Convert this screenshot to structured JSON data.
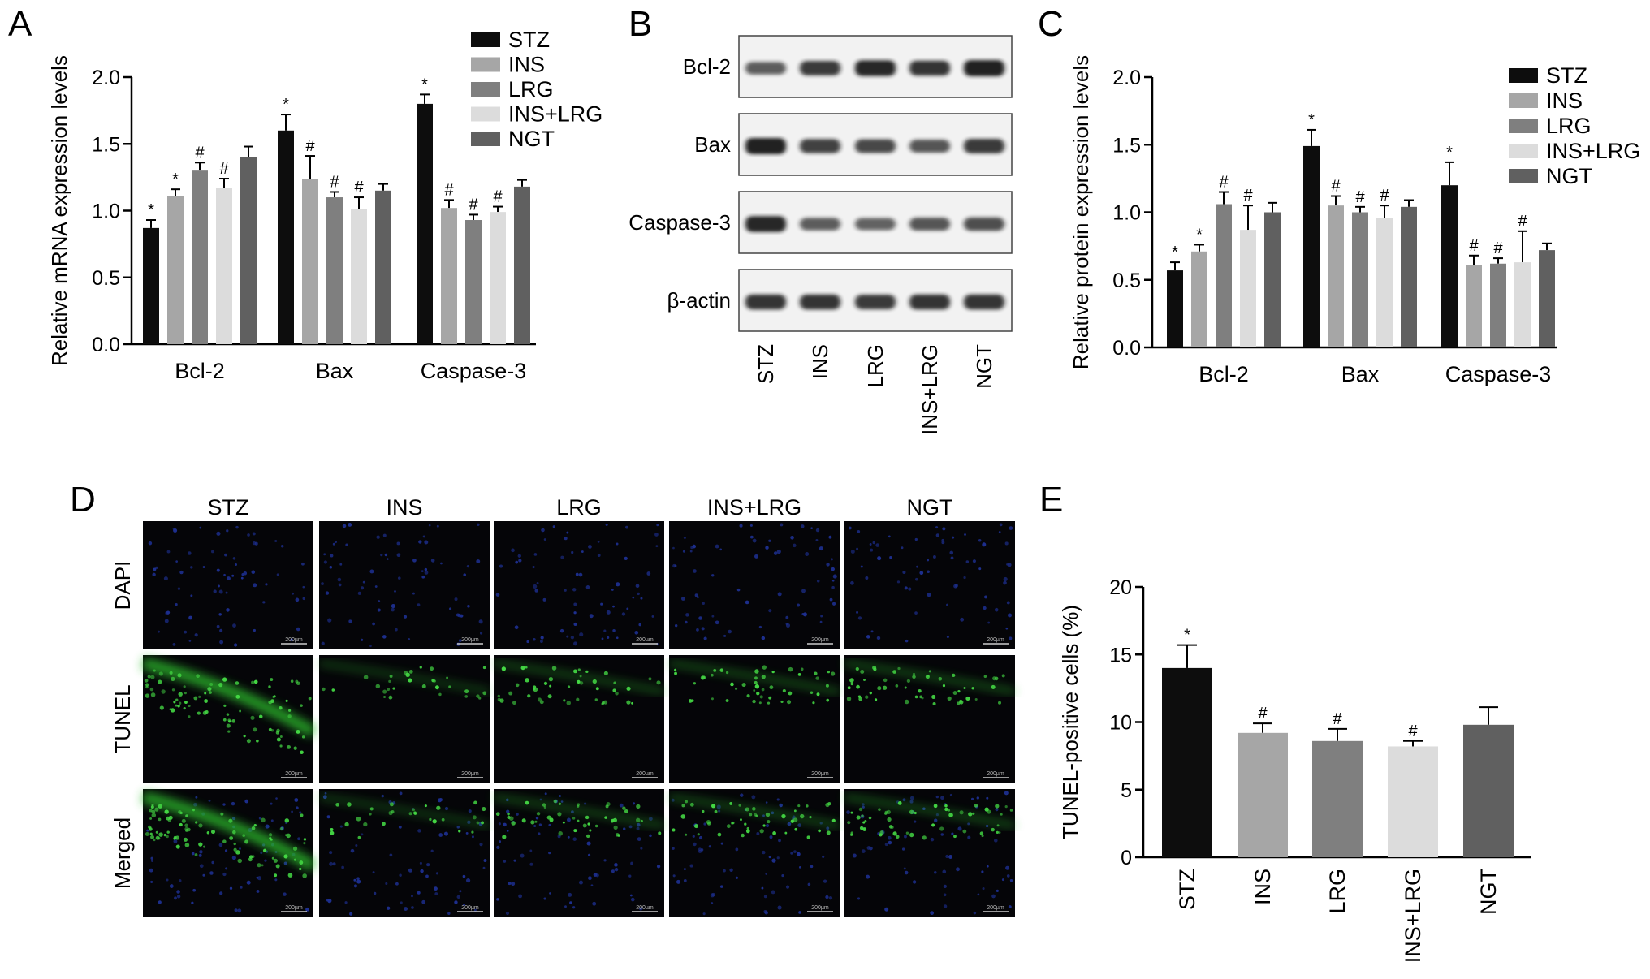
{
  "colors": {
    "STZ": "#0d0d0d",
    "INS": "#a6a6a6",
    "LRG": "#7f7f7f",
    "INS+LRG": "#dcdcdc",
    "NGT": "#606060"
  },
  "panels": {
    "A": "A",
    "B": "B",
    "C": "C",
    "D": "D",
    "E": "E"
  },
  "chart_data": [
    {
      "panel": "A",
      "type": "bar",
      "ylabel": "Relative mRNA expression levels",
      "ylim": [
        0,
        2.0
      ],
      "yticks": [
        "0.0",
        "0.5",
        "1.0",
        "1.5",
        "2.0"
      ],
      "categories": [
        "Bcl-2",
        "Bax",
        "Caspase-3"
      ],
      "legend_position": "top-right",
      "series": [
        {
          "name": "STZ",
          "values": [
            0.87,
            1.6,
            1.8
          ],
          "errors": [
            0.06,
            0.12,
            0.07
          ],
          "marks": [
            "*",
            "*",
            "*"
          ]
        },
        {
          "name": "INS",
          "values": [
            1.11,
            1.24,
            1.02
          ],
          "errors": [
            0.05,
            0.17,
            0.06
          ],
          "marks": [
            "*",
            "#",
            "#"
          ]
        },
        {
          "name": "LRG",
          "values": [
            1.3,
            1.1,
            0.93
          ],
          "errors": [
            0.06,
            0.04,
            0.04
          ],
          "marks": [
            "#",
            "#",
            "#"
          ]
        },
        {
          "name": "INS+LRG",
          "values": [
            1.17,
            1.01,
            0.99
          ],
          "errors": [
            0.07,
            0.09,
            0.04
          ],
          "marks": [
            "#",
            "#",
            "#"
          ]
        },
        {
          "name": "NGT",
          "values": [
            1.4,
            1.15,
            1.18
          ],
          "errors": [
            0.08,
            0.05,
            0.05
          ],
          "marks": [
            "",
            "",
            ""
          ]
        }
      ]
    },
    {
      "panel": "C",
      "type": "bar",
      "ylabel": "Relative protein expression levels",
      "ylim": [
        0,
        2.0
      ],
      "yticks": [
        "0.0",
        "0.5",
        "1.0",
        "1.5",
        "2.0"
      ],
      "categories": [
        "Bcl-2",
        "Bax",
        "Caspase-3"
      ],
      "legend_position": "top-right",
      "series": [
        {
          "name": "STZ",
          "values": [
            0.57,
            1.49,
            1.2
          ],
          "errors": [
            0.06,
            0.12,
            0.17
          ],
          "marks": [
            "*",
            "*",
            "*"
          ]
        },
        {
          "name": "INS",
          "values": [
            0.71,
            1.05,
            0.61
          ],
          "errors": [
            0.05,
            0.07,
            0.07
          ],
          "marks": [
            "*",
            "#",
            "#"
          ]
        },
        {
          "name": "LRG",
          "values": [
            1.06,
            1.0,
            0.62
          ],
          "errors": [
            0.09,
            0.04,
            0.04
          ],
          "marks": [
            "#",
            "#",
            "#"
          ]
        },
        {
          "name": "INS+LRG",
          "values": [
            0.87,
            0.96,
            0.63
          ],
          "errors": [
            0.18,
            0.09,
            0.23
          ],
          "marks": [
            "#",
            "#",
            "#"
          ]
        },
        {
          "name": "NGT",
          "values": [
            1.0,
            1.04,
            0.72
          ],
          "errors": [
            0.07,
            0.05,
            0.05
          ],
          "marks": [
            "",
            "",
            ""
          ]
        }
      ]
    },
    {
      "panel": "E",
      "type": "bar",
      "ylabel": "TUNEL-positive cells (%)",
      "ylim": [
        0,
        20
      ],
      "yticks": [
        "0",
        "5",
        "10",
        "15",
        "20"
      ],
      "categories": [
        "STZ",
        "INS",
        "LRG",
        "INS+LRG",
        "NGT"
      ],
      "values": [
        14.0,
        9.2,
        8.6,
        8.2,
        9.8
      ],
      "errors": [
        1.7,
        0.7,
        0.9,
        0.4,
        1.3
      ],
      "marks": [
        "*",
        "#",
        "#",
        "#",
        ""
      ]
    }
  ],
  "western_blot": {
    "proteins": [
      "Bcl-2",
      "Bax",
      "Caspase-3",
      "β-actin"
    ],
    "lanes": [
      "STZ",
      "INS",
      "LRG",
      "INS+LRG",
      "NGT"
    ],
    "band_intensity": [
      [
        0.55,
        0.8,
        0.95,
        0.85,
        1.0
      ],
      [
        1.0,
        0.75,
        0.7,
        0.6,
        0.8
      ],
      [
        0.95,
        0.55,
        0.5,
        0.6,
        0.65
      ],
      [
        0.85,
        0.85,
        0.8,
        0.85,
        0.85
      ]
    ]
  },
  "micrographs": {
    "columns": [
      "STZ",
      "INS",
      "LRG",
      "INS+LRG",
      "NGT"
    ],
    "rows": [
      "DAPI",
      "TUNEL",
      "Merged"
    ],
    "scale_bar": "200µm"
  }
}
